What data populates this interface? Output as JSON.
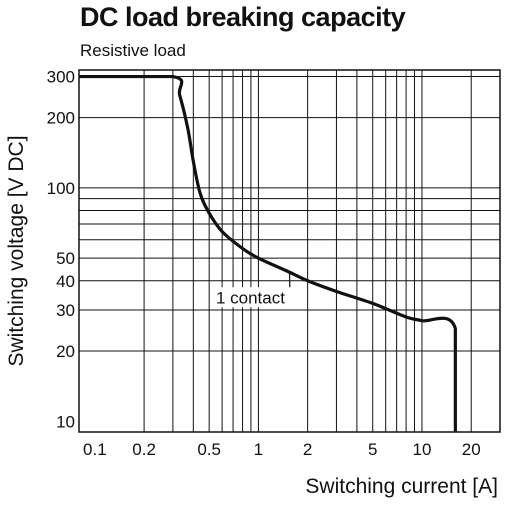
{
  "chart_data": {
    "type": "line",
    "title": "DC load breaking capacity",
    "subtitle": "Resistive load",
    "xlabel": "Switching current [A]",
    "ylabel": "Switching voltage [V DC]",
    "x_scale": "log",
    "y_scale": "log",
    "xlim": [
      0.08,
      30
    ],
    "ylim": [
      9,
      320
    ],
    "grid": true,
    "x_ticks": [
      0.1,
      0.2,
      0.5,
      1,
      2,
      5,
      10,
      20
    ],
    "x_tick_labels": [
      "0.1",
      "0.2",
      "0.5",
      "1",
      "2",
      "5",
      "10",
      "20"
    ],
    "y_ticks": [
      10,
      20,
      30,
      40,
      50,
      100,
      200,
      300
    ],
    "y_tick_labels": [
      "10",
      "20",
      "30",
      "40",
      "50",
      "100",
      "200",
      "300"
    ],
    "x_grid": [
      0.2,
      0.3,
      0.4,
      0.5,
      0.6,
      0.7,
      0.8,
      0.9,
      1,
      2,
      3,
      4,
      5,
      6,
      7,
      8,
      9,
      10,
      20
    ],
    "y_grid": [
      20,
      30,
      40,
      50,
      60,
      70,
      80,
      90,
      100,
      200,
      300
    ],
    "series": [
      {
        "name": "1 contact",
        "x": [
          0.08,
          0.3,
          0.33,
          0.37,
          0.4,
          0.44,
          0.5,
          0.6,
          0.8,
          1,
          1.5,
          2,
          3,
          5,
          8,
          10,
          16,
          16
        ],
        "y": [
          300,
          300,
          250,
          180,
          130,
          95,
          78,
          65,
          55,
          50,
          44,
          40,
          36,
          32,
          28,
          27,
          25,
          9
        ]
      }
    ],
    "annotations": [
      {
        "text": "1 contact",
        "x": 0.55,
        "y": 34,
        "points_to": [
          1.55,
          43
        ]
      }
    ]
  }
}
